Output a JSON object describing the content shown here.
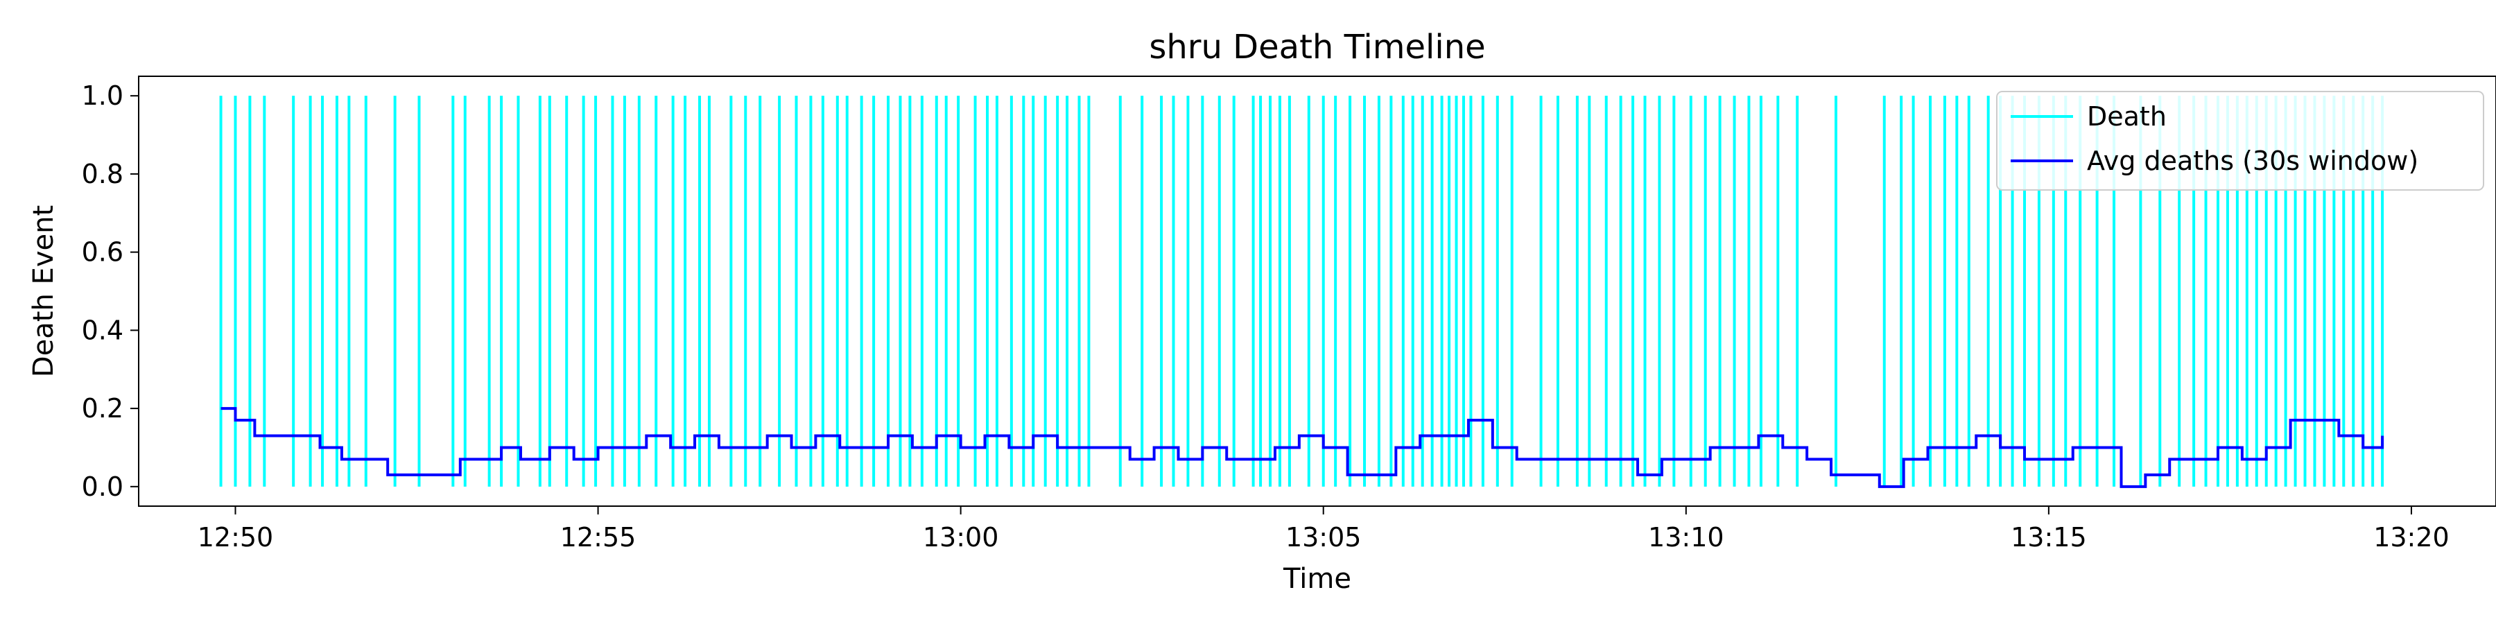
{
  "chart_data": {
    "type": "line",
    "title": "shru Death Timeline",
    "xlabel": "Time",
    "ylabel": "Death Event",
    "xlim": [
      "12:48:40",
      "13:21:10"
    ],
    "ylim": [
      -0.05,
      1.05
    ],
    "x_ticks": [
      "12:50",
      "12:55",
      "13:00",
      "13:05",
      "13:10",
      "13:15",
      "13:20"
    ],
    "y_ticks": [
      "0.0",
      "0.2",
      "0.4",
      "0.6",
      "0.8",
      "1.0"
    ],
    "grid": false,
    "legend_position": "top-right",
    "series": [
      {
        "name": "Death",
        "type": "event-lines",
        "color": "#00ffff",
        "y_range": [
          0,
          1
        ],
        "x": [
          "12:49:48",
          "12:50:00",
          "12:50:12",
          "12:50:24",
          "12:50:48",
          "12:51:02",
          "12:51:12",
          "12:51:24",
          "12:51:34",
          "12:51:48",
          "12:52:12",
          "12:52:32",
          "12:53:00",
          "12:53:10",
          "12:53:30",
          "12:53:40",
          "12:53:54",
          "12:54:12",
          "12:54:20",
          "12:54:34",
          "12:54:48",
          "12:54:58",
          "12:55:12",
          "12:55:22",
          "12:55:34",
          "12:55:48",
          "12:56:02",
          "12:56:12",
          "12:56:24",
          "12:56:32",
          "12:56:50",
          "12:57:02",
          "12:57:14",
          "12:57:30",
          "12:57:44",
          "12:57:56",
          "12:58:06",
          "12:58:18",
          "12:58:26",
          "12:58:38",
          "12:58:48",
          "12:59:00",
          "12:59:10",
          "12:59:18",
          "12:59:28",
          "12:59:40",
          "12:59:48",
          "12:59:58",
          "13:00:12",
          "13:00:22",
          "13:00:30",
          "13:00:42",
          "13:00:52",
          "13:01:00",
          "13:01:10",
          "13:01:20",
          "13:01:28",
          "13:01:38",
          "13:01:46",
          "13:02:12",
          "13:02:30",
          "13:02:46",
          "13:02:56",
          "13:03:08",
          "13:03:20",
          "13:03:34",
          "13:03:46",
          "13:04:02",
          "13:04:08",
          "13:04:16",
          "13:04:24",
          "13:04:32",
          "13:04:48",
          "13:05:00",
          "13:05:10",
          "13:05:22",
          "13:05:34",
          "13:05:46",
          "13:05:56",
          "13:06:06",
          "13:06:14",
          "13:06:22",
          "13:06:30",
          "13:06:38",
          "13:06:44",
          "13:06:50",
          "13:06:56",
          "13:07:02",
          "13:07:12",
          "13:07:24",
          "13:07:36",
          "13:08:00",
          "13:08:14",
          "13:08:30",
          "13:08:40",
          "13:08:54",
          "13:09:06",
          "13:09:16",
          "13:09:26",
          "13:09:38",
          "13:09:50",
          "13:10:04",
          "13:10:16",
          "13:10:28",
          "13:10:40",
          "13:10:52",
          "13:11:02",
          "13:11:16",
          "13:11:32",
          "13:12:04",
          "13:12:44",
          "13:12:58",
          "13:13:08",
          "13:13:22",
          "13:13:34",
          "13:13:44",
          "13:13:54",
          "13:14:10",
          "13:14:20",
          "13:14:30",
          "13:14:40",
          "13:14:52",
          "13:15:04",
          "13:15:14",
          "13:15:26",
          "13:15:40",
          "13:15:54",
          "13:16:16",
          "13:16:32",
          "13:16:48",
          "13:17:00",
          "13:17:10",
          "13:17:20",
          "13:17:28",
          "13:17:36",
          "13:17:44",
          "13:17:52",
          "13:18:00",
          "13:18:08",
          "13:18:16",
          "13:18:24",
          "13:18:32",
          "13:18:40",
          "13:18:48",
          "13:18:56",
          "13:19:04",
          "13:19:12",
          "13:19:20",
          "13:19:28",
          "13:19:36"
        ]
      },
      {
        "name": "Avg deaths (30s window)",
        "type": "step",
        "color": "#0000ff",
        "x": [
          "12:49:48",
          "12:50:00",
          "12:50:16",
          "12:50:36",
          "12:51:10",
          "12:51:28",
          "12:51:50",
          "12:52:06",
          "12:52:30",
          "12:52:54",
          "12:53:06",
          "12:53:22",
          "12:53:40",
          "12:53:56",
          "12:54:20",
          "12:54:40",
          "12:55:00",
          "12:55:20",
          "12:55:40",
          "12:56:00",
          "12:56:20",
          "12:56:40",
          "12:57:00",
          "12:57:20",
          "12:57:40",
          "12:58:00",
          "12:58:20",
          "12:58:40",
          "12:59:00",
          "12:59:20",
          "12:59:40",
          "13:00:00",
          "13:00:20",
          "13:00:40",
          "13:01:00",
          "13:01:20",
          "13:01:40",
          "13:02:00",
          "13:02:20",
          "13:02:40",
          "13:03:00",
          "13:03:20",
          "13:03:40",
          "13:04:00",
          "13:04:20",
          "13:04:40",
          "13:05:00",
          "13:05:20",
          "13:05:40",
          "13:06:00",
          "13:06:20",
          "13:06:40",
          "13:07:00",
          "13:07:20",
          "13:07:40",
          "13:08:00",
          "13:08:20",
          "13:08:40",
          "13:09:00",
          "13:09:20",
          "13:09:40",
          "13:10:00",
          "13:10:20",
          "13:10:40",
          "13:11:00",
          "13:11:20",
          "13:11:40",
          "13:12:00",
          "13:12:20",
          "13:12:40",
          "13:13:00",
          "13:13:20",
          "13:13:40",
          "13:14:00",
          "13:14:20",
          "13:14:40",
          "13:15:00",
          "13:15:20",
          "13:15:40",
          "13:16:00",
          "13:16:20",
          "13:16:40",
          "13:17:00",
          "13:17:20",
          "13:17:40",
          "13:18:00",
          "13:18:20",
          "13:18:40",
          "13:19:00",
          "13:19:20",
          "13:19:36"
        ],
        "y": [
          0.2,
          0.17,
          0.13,
          0.13,
          0.1,
          0.07,
          0.07,
          0.03,
          0.03,
          0.03,
          0.07,
          0.07,
          0.1,
          0.07,
          0.1,
          0.07,
          0.1,
          0.1,
          0.13,
          0.1,
          0.13,
          0.1,
          0.1,
          0.13,
          0.1,
          0.13,
          0.1,
          0.1,
          0.13,
          0.1,
          0.13,
          0.1,
          0.13,
          0.1,
          0.13,
          0.1,
          0.1,
          0.1,
          0.07,
          0.1,
          0.07,
          0.1,
          0.07,
          0.07,
          0.1,
          0.13,
          0.1,
          0.03,
          0.03,
          0.1,
          0.13,
          0.13,
          0.17,
          0.1,
          0.07,
          0.07,
          0.07,
          0.07,
          0.07,
          0.03,
          0.07,
          0.07,
          0.1,
          0.1,
          0.13,
          0.1,
          0.07,
          0.03,
          0.03,
          0.0,
          0.07,
          0.1,
          0.1,
          0.13,
          0.1,
          0.07,
          0.07,
          0.1,
          0.1,
          0.0,
          0.03,
          0.07,
          0.07,
          0.1,
          0.07,
          0.1,
          0.17,
          0.17,
          0.13,
          0.1,
          0.13
        ]
      }
    ]
  }
}
